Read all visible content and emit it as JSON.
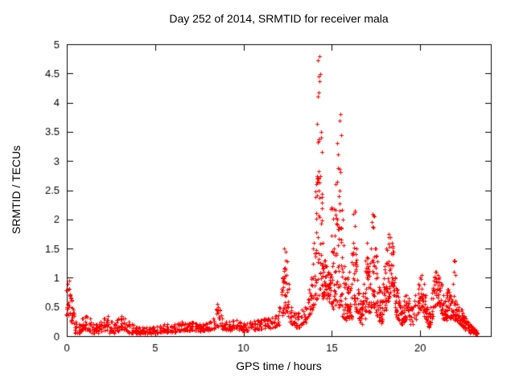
{
  "page": {
    "background": "#ffffff"
  },
  "chart_data": {
    "type": "scatter",
    "title": "Day 252 of 2014, SRMTID for receiver mala",
    "xlabel": "GPS time / hours",
    "ylabel": "SRMTID / TECUs",
    "xlim": [
      0,
      24
    ],
    "ylim": [
      0,
      5
    ],
    "xticks": [
      0,
      5,
      10,
      15,
      20
    ],
    "yticks": [
      0,
      0.5,
      1,
      1.5,
      2,
      2.5,
      3,
      3.5,
      4,
      4.5,
      5
    ],
    "grid": false,
    "legend": "none",
    "marker": "plus",
    "series_color": "#ff0000",
    "axis_color": "#000000",
    "envelope_format": [
      "x_hours",
      "y_min",
      "y_max",
      "n_points"
    ],
    "envelope": [
      [
        0.05,
        0.35,
        0.9,
        10
      ],
      [
        0.15,
        0.4,
        0.95,
        10
      ],
      [
        0.25,
        0.25,
        0.65,
        8
      ],
      [
        0.35,
        0.15,
        0.45,
        8
      ],
      [
        0.5,
        0.05,
        0.25,
        9
      ],
      [
        0.7,
        0.05,
        0.2,
        9
      ],
      [
        0.9,
        0.08,
        0.3,
        9
      ],
      [
        1.1,
        0.1,
        0.35,
        9
      ],
      [
        1.3,
        0.08,
        0.3,
        9
      ],
      [
        1.5,
        0.05,
        0.2,
        9
      ],
      [
        1.7,
        0.05,
        0.2,
        9
      ],
      [
        1.9,
        0.08,
        0.25,
        9
      ],
      [
        2.1,
        0.1,
        0.3,
        9
      ],
      [
        2.3,
        0.1,
        0.35,
        9
      ],
      [
        2.5,
        0.05,
        0.25,
        9
      ],
      [
        2.7,
        0.05,
        0.2,
        9
      ],
      [
        2.9,
        0.08,
        0.3,
        9
      ],
      [
        3.1,
        0.12,
        0.35,
        9
      ],
      [
        3.3,
        0.1,
        0.3,
        9
      ],
      [
        3.5,
        0.05,
        0.25,
        9
      ],
      [
        3.7,
        0.05,
        0.2,
        9
      ],
      [
        3.9,
        0.04,
        0.15,
        9
      ],
      [
        4.1,
        0.04,
        0.15,
        9
      ],
      [
        4.3,
        0.04,
        0.15,
        9
      ],
      [
        4.5,
        0.04,
        0.15,
        9
      ],
      [
        4.7,
        0.04,
        0.15,
        9
      ],
      [
        4.9,
        0.04,
        0.15,
        9
      ],
      [
        5.1,
        0.05,
        0.16,
        9
      ],
      [
        5.3,
        0.06,
        0.18,
        9
      ],
      [
        5.5,
        0.07,
        0.2,
        9
      ],
      [
        5.7,
        0.07,
        0.2,
        9
      ],
      [
        5.9,
        0.06,
        0.18,
        9
      ],
      [
        6.1,
        0.07,
        0.2,
        9
      ],
      [
        6.3,
        0.09,
        0.22,
        9
      ],
      [
        6.5,
        0.1,
        0.25,
        9
      ],
      [
        6.7,
        0.09,
        0.22,
        9
      ],
      [
        6.9,
        0.09,
        0.22,
        9
      ],
      [
        7.1,
        0.1,
        0.24,
        9
      ],
      [
        7.3,
        0.09,
        0.22,
        9
      ],
      [
        7.5,
        0.08,
        0.2,
        9
      ],
      [
        7.7,
        0.08,
        0.2,
        9
      ],
      [
        7.9,
        0.09,
        0.22,
        9
      ],
      [
        8.1,
        0.1,
        0.25,
        9
      ],
      [
        8.3,
        0.12,
        0.3,
        9
      ],
      [
        8.5,
        0.18,
        0.55,
        11
      ],
      [
        8.65,
        0.15,
        0.45,
        9
      ],
      [
        8.8,
        0.12,
        0.3,
        9
      ],
      [
        9.0,
        0.1,
        0.25,
        9
      ],
      [
        9.2,
        0.1,
        0.25,
        9
      ],
      [
        9.4,
        0.11,
        0.26,
        9
      ],
      [
        9.6,
        0.12,
        0.28,
        9
      ],
      [
        9.8,
        0.1,
        0.25,
        9
      ],
      [
        10.0,
        0.09,
        0.22,
        9
      ],
      [
        10.2,
        0.09,
        0.22,
        9
      ],
      [
        10.4,
        0.11,
        0.25,
        9
      ],
      [
        10.6,
        0.11,
        0.26,
        9
      ],
      [
        10.8,
        0.12,
        0.28,
        9
      ],
      [
        11.0,
        0.12,
        0.28,
        9
      ],
      [
        11.2,
        0.13,
        0.3,
        9
      ],
      [
        11.4,
        0.14,
        0.3,
        9
      ],
      [
        11.6,
        0.14,
        0.32,
        9
      ],
      [
        11.8,
        0.15,
        0.35,
        9
      ],
      [
        12.0,
        0.18,
        0.5,
        9
      ],
      [
        12.2,
        0.35,
        1.0,
        12
      ],
      [
        12.3,
        0.45,
        1.5,
        14
      ],
      [
        12.4,
        0.4,
        1.45,
        12
      ],
      [
        12.55,
        0.3,
        0.9,
        10
      ],
      [
        12.7,
        0.2,
        0.5,
        9
      ],
      [
        12.9,
        0.15,
        0.4,
        9
      ],
      [
        13.1,
        0.15,
        0.4,
        9
      ],
      [
        13.3,
        0.18,
        0.45,
        9
      ],
      [
        13.5,
        0.2,
        0.5,
        9
      ],
      [
        13.7,
        0.28,
        0.8,
        10
      ],
      [
        13.85,
        0.35,
        1.0,
        11
      ],
      [
        14.0,
        0.5,
        1.6,
        12
      ],
      [
        14.1,
        0.6,
        2.6,
        14
      ],
      [
        14.2,
        0.7,
        4.1,
        17
      ],
      [
        14.3,
        0.8,
        4.8,
        19
      ],
      [
        14.4,
        0.7,
        3.5,
        15
      ],
      [
        14.5,
        0.65,
        1.6,
        12
      ],
      [
        14.6,
        0.65,
        1.3,
        10
      ],
      [
        14.7,
        0.7,
        1.2,
        10
      ],
      [
        14.8,
        0.65,
        1.1,
        10
      ],
      [
        14.9,
        0.55,
        1.0,
        10
      ],
      [
        15.0,
        0.5,
        2.2,
        12
      ],
      [
        15.1,
        0.45,
        1.5,
        10
      ],
      [
        15.2,
        0.5,
        2.6,
        12
      ],
      [
        15.3,
        0.55,
        3.3,
        14
      ],
      [
        15.4,
        0.5,
        2.4,
        12
      ],
      [
        15.5,
        0.4,
        3.8,
        15
      ],
      [
        15.6,
        0.35,
        2.0,
        12
      ],
      [
        15.7,
        0.3,
        1.2,
        10
      ],
      [
        15.8,
        0.25,
        0.9,
        9
      ],
      [
        15.9,
        0.3,
        1.0,
        10
      ],
      [
        16.0,
        0.3,
        1.1,
        10
      ],
      [
        16.1,
        0.3,
        0.9,
        9
      ],
      [
        16.2,
        0.4,
        1.6,
        10
      ],
      [
        16.3,
        0.45,
        2.15,
        12
      ],
      [
        16.4,
        0.4,
        1.5,
        10
      ],
      [
        16.5,
        0.3,
        0.8,
        9
      ],
      [
        16.6,
        0.22,
        0.6,
        9
      ],
      [
        16.7,
        0.2,
        0.5,
        9
      ],
      [
        16.8,
        0.28,
        0.9,
        9
      ],
      [
        16.9,
        0.4,
        1.3,
        10
      ],
      [
        17.0,
        0.5,
        1.6,
        11
      ],
      [
        17.1,
        0.4,
        1.2,
        10
      ],
      [
        17.2,
        0.5,
        1.5,
        10
      ],
      [
        17.3,
        0.55,
        2.1,
        12
      ],
      [
        17.4,
        0.5,
        2.05,
        12
      ],
      [
        17.5,
        0.4,
        1.5,
        10
      ],
      [
        17.6,
        0.3,
        1.0,
        9
      ],
      [
        17.7,
        0.25,
        0.8,
        9
      ],
      [
        17.8,
        0.2,
        0.6,
        9
      ],
      [
        17.9,
        0.3,
        0.9,
        9
      ],
      [
        18.0,
        0.4,
        1.2,
        10
      ],
      [
        18.1,
        0.5,
        1.5,
        11
      ],
      [
        18.2,
        0.6,
        1.75,
        12
      ],
      [
        18.3,
        0.7,
        1.7,
        12
      ],
      [
        18.4,
        0.75,
        1.6,
        11
      ],
      [
        18.5,
        0.6,
        1.45,
        10
      ],
      [
        18.6,
        0.4,
        1.0,
        9
      ],
      [
        18.7,
        0.3,
        0.8,
        9
      ],
      [
        18.8,
        0.25,
        0.6,
        9
      ],
      [
        18.9,
        0.2,
        0.5,
        9
      ],
      [
        19.0,
        0.2,
        0.5,
        9
      ],
      [
        19.1,
        0.25,
        0.6,
        9
      ],
      [
        19.2,
        0.28,
        0.7,
        9
      ],
      [
        19.35,
        0.28,
        0.65,
        9
      ],
      [
        19.5,
        0.2,
        0.5,
        9
      ],
      [
        19.7,
        0.28,
        0.7,
        9
      ],
      [
        19.9,
        0.38,
        0.9,
        10
      ],
      [
        20.0,
        0.45,
        1.0,
        10
      ],
      [
        20.1,
        0.45,
        1.05,
        10
      ],
      [
        20.2,
        0.38,
        0.9,
        9
      ],
      [
        20.3,
        0.3,
        0.7,
        9
      ],
      [
        20.4,
        0.2,
        0.5,
        9
      ],
      [
        20.5,
        0.15,
        0.4,
        9
      ],
      [
        20.6,
        0.2,
        0.5,
        9
      ],
      [
        20.7,
        0.3,
        0.8,
        9
      ],
      [
        20.8,
        0.45,
        1.0,
        10
      ],
      [
        20.9,
        0.55,
        1.1,
        10
      ],
      [
        21.0,
        0.55,
        1.05,
        10
      ],
      [
        21.1,
        0.5,
        1.0,
        10
      ],
      [
        21.2,
        0.4,
        0.9,
        9
      ],
      [
        21.3,
        0.3,
        0.7,
        9
      ],
      [
        21.4,
        0.28,
        0.6,
        9
      ],
      [
        21.5,
        0.32,
        0.75,
        9
      ],
      [
        21.6,
        0.36,
        0.8,
        9
      ],
      [
        21.7,
        0.32,
        0.7,
        9
      ],
      [
        21.8,
        0.28,
        0.6,
        9
      ],
      [
        21.9,
        0.4,
        1.3,
        10
      ],
      [
        22.0,
        0.28,
        0.6,
        9
      ],
      [
        22.1,
        0.24,
        0.55,
        9
      ],
      [
        22.2,
        0.2,
        0.5,
        9
      ],
      [
        22.3,
        0.18,
        0.45,
        9
      ],
      [
        22.4,
        0.15,
        0.4,
        9
      ],
      [
        22.5,
        0.14,
        0.35,
        9
      ],
      [
        22.6,
        0.1,
        0.3,
        9
      ],
      [
        22.7,
        0.09,
        0.25,
        9
      ],
      [
        22.8,
        0.07,
        0.2,
        9
      ],
      [
        22.9,
        0.05,
        0.18,
        8
      ],
      [
        23.0,
        0.05,
        0.15,
        8
      ],
      [
        23.1,
        0.04,
        0.12,
        7
      ],
      [
        23.2,
        0.03,
        0.1,
        7
      ]
    ]
  }
}
